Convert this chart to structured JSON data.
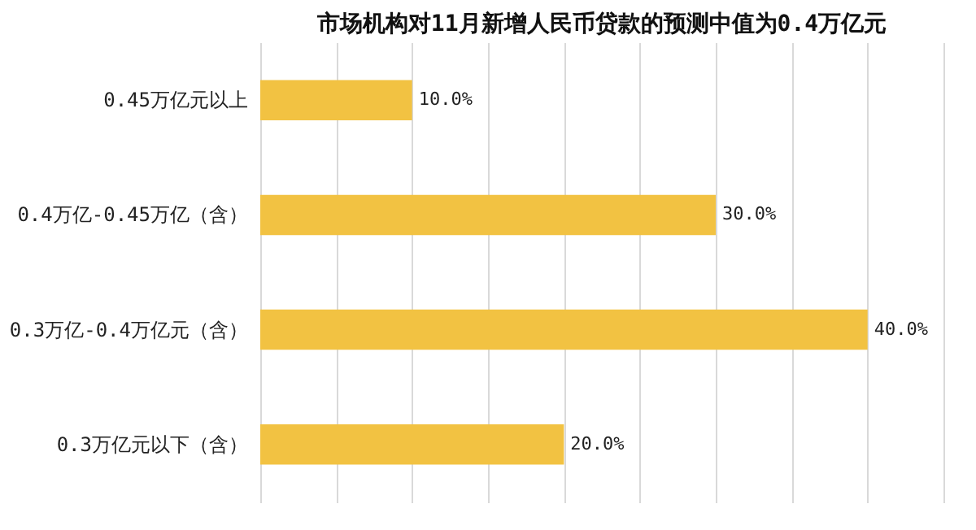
{
  "chart_data": {
    "type": "bar",
    "orientation": "horizontal",
    "title": "市场机构对11月新增人民币贷款的预测中值为0.4万亿元",
    "categories": [
      "0.45万亿元以上",
      "0.4万亿-0.45万亿（含）",
      "0.3万亿-0.4万亿元（含）",
      "0.3万亿元以下（含）"
    ],
    "values": [
      10.0,
      30.0,
      40.0,
      20.0
    ],
    "value_labels": [
      "10.0%",
      "30.0%",
      "40.0%",
      "20.0%"
    ],
    "color": "#f2c242",
    "xlim": [
      0,
      45
    ],
    "xticks": [
      {
        "value": 0,
        "label": null
      },
      {
        "value": 5,
        "label": null
      },
      {
        "value": 10,
        "label": null
      },
      {
        "value": 15,
        "label": null
      },
      {
        "value": 20,
        "label": null
      },
      {
        "value": 25,
        "label": null
      },
      {
        "value": 30,
        "label": null
      },
      {
        "value": 35,
        "label": null
      },
      {
        "value": 40,
        "label": null
      },
      {
        "value": 45,
        "label": null
      }
    ],
    "grid": "x"
  }
}
